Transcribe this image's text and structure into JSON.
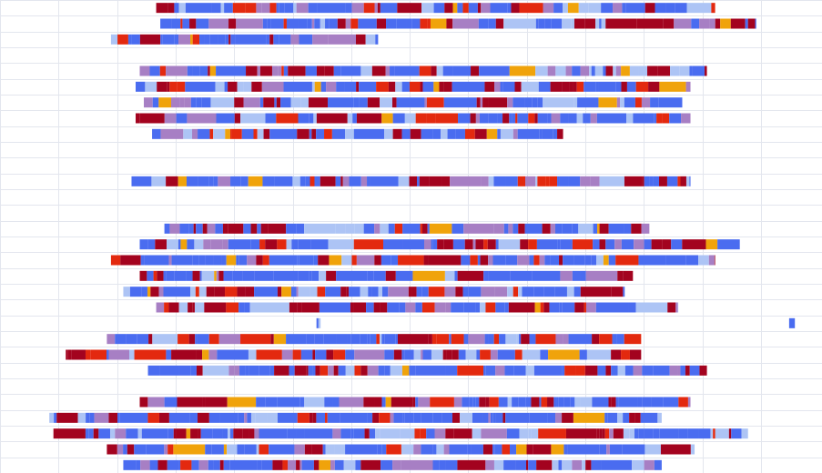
{
  "chart_data": {
    "type": "bar",
    "title": "",
    "xlabel": "",
    "ylabel": "",
    "grid": true,
    "legend": "none",
    "colors": {
      "blue": "#4a6cf0",
      "light_blue": "#adc4f5",
      "red": "#e3290f",
      "dark_red": "#a3031f",
      "purple": "#a77fc4",
      "orange": "#f0a30b"
    },
    "x_range": [
      0,
      100
    ],
    "rows": [
      {
        "start": 19,
        "end": 87
      },
      {
        "start": 19.5,
        "end": 92
      },
      {
        "start": 13.5,
        "end": 46
      },
      null,
      {
        "start": 17,
        "end": 86
      },
      {
        "start": 16.5,
        "end": 84
      },
      {
        "start": 17.5,
        "end": 83
      },
      {
        "start": 16.5,
        "end": 84
      },
      {
        "start": 18.5,
        "end": 68.5
      },
      null,
      null,
      {
        "start": 16,
        "end": 84
      },
      null,
      null,
      {
        "start": 20,
        "end": 79
      },
      {
        "start": 17,
        "end": 90
      },
      {
        "start": 13.5,
        "end": 87
      },
      {
        "start": 17,
        "end": 77
      },
      {
        "start": 15,
        "end": 76
      },
      {
        "start": 19,
        "end": 82.5
      },
      {
        "start": 38.5,
        "end": 39,
        "extra": [
          {
            "start": 96,
            "end": 96.7
          }
        ]
      },
      {
        "start": 13,
        "end": 78
      },
      {
        "start": 8,
        "end": 78
      },
      {
        "start": 18,
        "end": 86
      },
      null,
      {
        "start": 17,
        "end": 84
      },
      {
        "start": 6,
        "end": 80.5
      },
      {
        "start": 6.5,
        "end": 91
      },
      {
        "start": 13,
        "end": 84.5
      },
      {
        "start": 15,
        "end": 80.5
      }
    ]
  }
}
